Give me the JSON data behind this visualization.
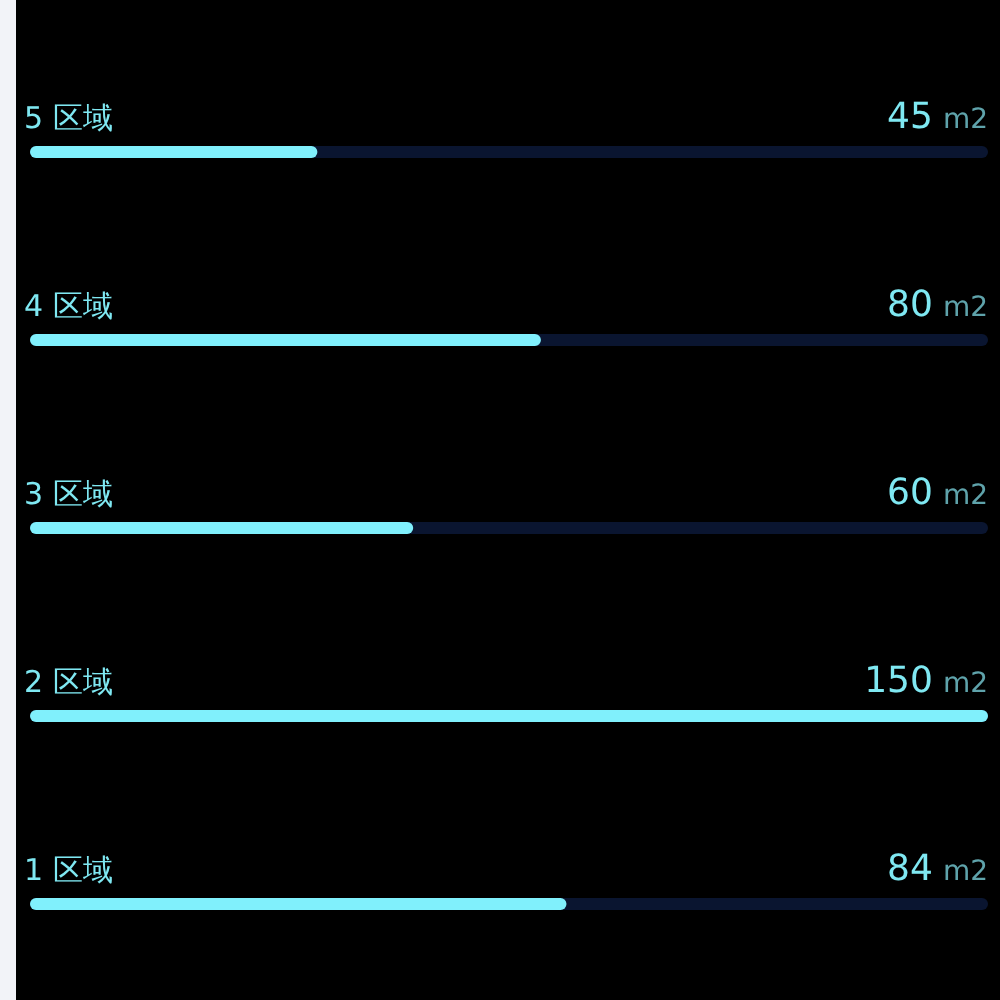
{
  "chart_data": {
    "type": "bar",
    "orientation": "horizontal",
    "categories": [
      "5 区域",
      "4 区域",
      "3 区域",
      "2 区域",
      "1 区域"
    ],
    "values": [
      45,
      80,
      60,
      150,
      84
    ],
    "color": "#80f0fc",
    "xlim": [
      0,
      150
    ],
    "value_labels": [
      "45 m2",
      "80 m2",
      "60 m2",
      "150 m2",
      "84 m2"
    ],
    "tick_labels": "y"
  }
}
